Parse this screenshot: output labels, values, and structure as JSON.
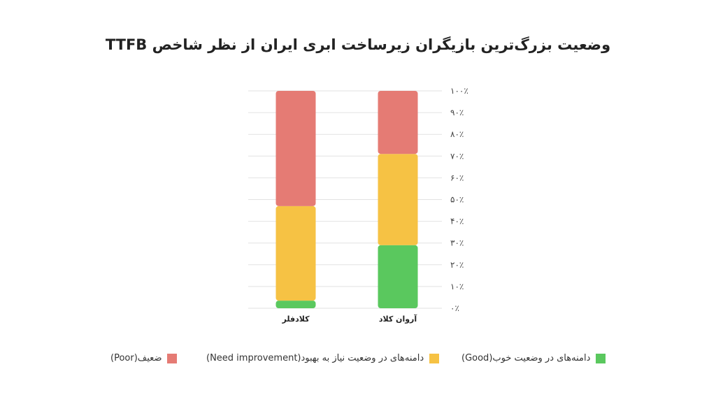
{
  "chart_data": {
    "type": "bar",
    "stacked": true,
    "title": "وضعیت بزرگ‌ترین بازیگران زیرساخت ابری ایران از نظر شاخص TTFB",
    "categories": [
      "کلادفلر",
      "آروان کلاد"
    ],
    "series": [
      {
        "name": "دامنه‌های در وضعیت خوب(Good)",
        "color": "#5ac85e",
        "values": [
          3.5,
          29
        ]
      },
      {
        "name": "دامنه‌های در وضعیت نیاز به بهبود(Need improvement)",
        "color": "#f6c244",
        "values": [
          43.5,
          42
        ]
      },
      {
        "name": "ضعیف(Poor)",
        "color": "#e57b74",
        "values": [
          53,
          29
        ]
      }
    ],
    "y_ticks": [
      "۰٪",
      "۱۰٪",
      "۲۰٪",
      "۳۰٪",
      "۴۰٪",
      "۵۰٪",
      "۶۰٪",
      "۷۰٪",
      "۸۰٪",
      "۹۰٪",
      "۱۰۰٪"
    ],
    "ylim": [
      0,
      100
    ],
    "grid": true,
    "legend_position": "bottom"
  }
}
